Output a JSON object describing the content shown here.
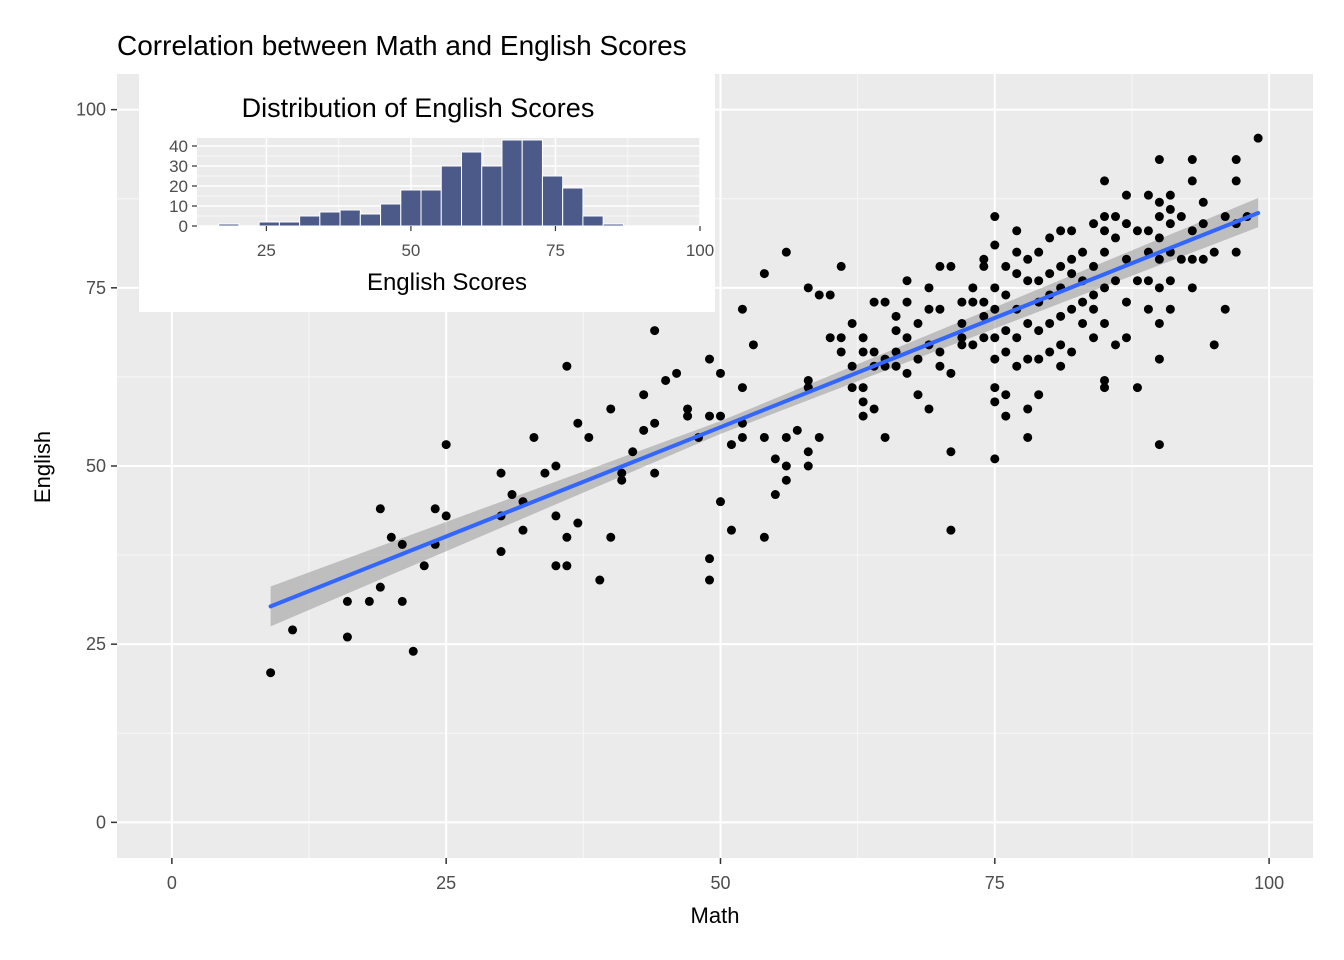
{
  "chart_data": [
    {
      "type": "scatter",
      "title": "Correlation between Math and English Scores",
      "xlabel": "Math",
      "ylabel": "English",
      "xlim": [
        -5,
        104
      ],
      "ylim": [
        -5,
        105
      ],
      "x_ticks": [
        0,
        25,
        50,
        75,
        100
      ],
      "y_ticks": [
        0,
        25,
        50,
        75,
        100
      ],
      "grid": true,
      "colors": {
        "points": "#000000",
        "fit_line": "#3366ff",
        "confidence_band": "#999999",
        "panel": "#ebebeb"
      },
      "fit_line": {
        "x": [
          9,
          99
        ],
        "y": [
          30.3,
          85.5
        ]
      },
      "confidence_band": {
        "x": [
          9,
          50,
          99
        ],
        "lower": [
          27.5,
          54.5,
          83.5
        ],
        "upper": [
          33.1,
          56.3,
          87.6
        ]
      },
      "points": [
        [
          9,
          21
        ],
        [
          11,
          27
        ],
        [
          16,
          31
        ],
        [
          16,
          26
        ],
        [
          18,
          31
        ],
        [
          19,
          33
        ],
        [
          19,
          44
        ],
        [
          20,
          40
        ],
        [
          21,
          39
        ],
        [
          21,
          31
        ],
        [
          22,
          24
        ],
        [
          23,
          36
        ],
        [
          24,
          44
        ],
        [
          24,
          39
        ],
        [
          25,
          53
        ],
        [
          25,
          43
        ],
        [
          30,
          49
        ],
        [
          30,
          43
        ],
        [
          30,
          38
        ],
        [
          31,
          46
        ],
        [
          32,
          45
        ],
        [
          32,
          41
        ],
        [
          33,
          54
        ],
        [
          34,
          49
        ],
        [
          35,
          50
        ],
        [
          35,
          43
        ],
        [
          35,
          36
        ],
        [
          36,
          40
        ],
        [
          36,
          36
        ],
        [
          36,
          64
        ],
        [
          37,
          56
        ],
        [
          37,
          42
        ],
        [
          38,
          54
        ],
        [
          39,
          34
        ],
        [
          40,
          58
        ],
        [
          40,
          40
        ],
        [
          41,
          49
        ],
        [
          41,
          48
        ],
        [
          42,
          52
        ],
        [
          43,
          60
        ],
        [
          43,
          55
        ],
        [
          44,
          69
        ],
        [
          44,
          56
        ],
        [
          44,
          49
        ],
        [
          45,
          62
        ],
        [
          46,
          63
        ],
        [
          47,
          58
        ],
        [
          47,
          57
        ],
        [
          48,
          54
        ],
        [
          49,
          65
        ],
        [
          49,
          57
        ],
        [
          49,
          37
        ],
        [
          49,
          34
        ],
        [
          50,
          63
        ],
        [
          50,
          57
        ],
        [
          50,
          45
        ],
        [
          51,
          53
        ],
        [
          51,
          41
        ],
        [
          52,
          72
        ],
        [
          52,
          61
        ],
        [
          52,
          56
        ],
        [
          52,
          54
        ],
        [
          53,
          67
        ],
        [
          54,
          77
        ],
        [
          54,
          54
        ],
        [
          54,
          40
        ],
        [
          55,
          51
        ],
        [
          55,
          46
        ],
        [
          56,
          80
        ],
        [
          56,
          50
        ],
        [
          56,
          48
        ],
        [
          56,
          54
        ],
        [
          57,
          55
        ],
        [
          58,
          75
        ],
        [
          58,
          62
        ],
        [
          58,
          61
        ],
        [
          58,
          52
        ],
        [
          58,
          50
        ],
        [
          59,
          74
        ],
        [
          59,
          54
        ],
        [
          60,
          74
        ],
        [
          60,
          68
        ],
        [
          61,
          78
        ],
        [
          61,
          66
        ],
        [
          61,
          68
        ],
        [
          62,
          61
        ],
        [
          62,
          64
        ],
        [
          62,
          70
        ],
        [
          63,
          57
        ],
        [
          63,
          59
        ],
        [
          63,
          61
        ],
        [
          63,
          66
        ],
        [
          63,
          68
        ],
        [
          64,
          73
        ],
        [
          64,
          66
        ],
        [
          64,
          64
        ],
        [
          64,
          58
        ],
        [
          65,
          73
        ],
        [
          65,
          65
        ],
        [
          65,
          64
        ],
        [
          65,
          54
        ],
        [
          66,
          71
        ],
        [
          66,
          64
        ],
        [
          66,
          66
        ],
        [
          66,
          69
        ],
        [
          67,
          76
        ],
        [
          67,
          73
        ],
        [
          67,
          68
        ],
        [
          67,
          63
        ],
        [
          68,
          60
        ],
        [
          68,
          70
        ],
        [
          68,
          65
        ],
        [
          69,
          75
        ],
        [
          69,
          72
        ],
        [
          69,
          67
        ],
        [
          69,
          58
        ],
        [
          70,
          78
        ],
        [
          70,
          72
        ],
        [
          70,
          66
        ],
        [
          70,
          64
        ],
        [
          71,
          78
        ],
        [
          71,
          63
        ],
        [
          71,
          52
        ],
        [
          71,
          41
        ],
        [
          72,
          70
        ],
        [
          72,
          73
        ],
        [
          72,
          68
        ],
        [
          72,
          67
        ],
        [
          73,
          73
        ],
        [
          73,
          67
        ],
        [
          73,
          75
        ],
        [
          74,
          79
        ],
        [
          74,
          78
        ],
        [
          74,
          73
        ],
        [
          74,
          71
        ],
        [
          74,
          68
        ],
        [
          75,
          85
        ],
        [
          75,
          81
        ],
        [
          75,
          75
        ],
        [
          75,
          72
        ],
        [
          75,
          68
        ],
        [
          75,
          65
        ],
        [
          75,
          61
        ],
        [
          75,
          59
        ],
        [
          75,
          51
        ],
        [
          76,
          78
        ],
        [
          76,
          74
        ],
        [
          76,
          69
        ],
        [
          76,
          66
        ],
        [
          76,
          60
        ],
        [
          76,
          57
        ],
        [
          77,
          83
        ],
        [
          77,
          80
        ],
        [
          77,
          77
        ],
        [
          77,
          72
        ],
        [
          77,
          68
        ],
        [
          77,
          64
        ],
        [
          78,
          79
        ],
        [
          78,
          76
        ],
        [
          78,
          70
        ],
        [
          78,
          65
        ],
        [
          78,
          58
        ],
        [
          78,
          54
        ],
        [
          79,
          80
        ],
        [
          79,
          76
        ],
        [
          79,
          73
        ],
        [
          79,
          69
        ],
        [
          79,
          65
        ],
        [
          79,
          60
        ],
        [
          80,
          82
        ],
        [
          80,
          77
        ],
        [
          80,
          74
        ],
        [
          80,
          70
        ],
        [
          80,
          66
        ],
        [
          81,
          83
        ],
        [
          81,
          78
        ],
        [
          81,
          75
        ],
        [
          81,
          71
        ],
        [
          81,
          67
        ],
        [
          81,
          64
        ],
        [
          82,
          83
        ],
        [
          82,
          79
        ],
        [
          82,
          77
        ],
        [
          82,
          72
        ],
        [
          82,
          66
        ],
        [
          83,
          80
        ],
        [
          83,
          76
        ],
        [
          83,
          73
        ],
        [
          83,
          70
        ],
        [
          84,
          84
        ],
        [
          84,
          78
        ],
        [
          84,
          74
        ],
        [
          84,
          72
        ],
        [
          84,
          68
        ],
        [
          85,
          90
        ],
        [
          85,
          85
        ],
        [
          85,
          83
        ],
        [
          85,
          80
        ],
        [
          85,
          75
        ],
        [
          85,
          70
        ],
        [
          85,
          62
        ],
        [
          85,
          61
        ],
        [
          86,
          85
        ],
        [
          86,
          82
        ],
        [
          86,
          76
        ],
        [
          86,
          67
        ],
        [
          87,
          88
        ],
        [
          87,
          84
        ],
        [
          87,
          79
        ],
        [
          87,
          73
        ],
        [
          87,
          68
        ],
        [
          88,
          83
        ],
        [
          88,
          76
        ],
        [
          88,
          61
        ],
        [
          89,
          88
        ],
        [
          89,
          83
        ],
        [
          89,
          80
        ],
        [
          89,
          76
        ],
        [
          89,
          72
        ],
        [
          90,
          93
        ],
        [
          90,
          87
        ],
        [
          90,
          85
        ],
        [
          90,
          82
        ],
        [
          90,
          79
        ],
        [
          90,
          75
        ],
        [
          90,
          70
        ],
        [
          90,
          65
        ],
        [
          90,
          53
        ],
        [
          91,
          88
        ],
        [
          91,
          86
        ],
        [
          91,
          84
        ],
        [
          91,
          80
        ],
        [
          91,
          76
        ],
        [
          91,
          72
        ],
        [
          92,
          85
        ],
        [
          92,
          79
        ],
        [
          93,
          93
        ],
        [
          93,
          90
        ],
        [
          93,
          83
        ],
        [
          93,
          79
        ],
        [
          93,
          75
        ],
        [
          94,
          87
        ],
        [
          94,
          84
        ],
        [
          94,
          79
        ],
        [
          95,
          80
        ],
        [
          95,
          67
        ],
        [
          96,
          85
        ],
        [
          96,
          72
        ],
        [
          97,
          93
        ],
        [
          97,
          90
        ],
        [
          97,
          84
        ],
        [
          97,
          80
        ],
        [
          98,
          85
        ],
        [
          99,
          96
        ]
      ]
    },
    {
      "type": "bar",
      "title": "Distribution of English Scores",
      "xlabel": "English Scores",
      "ylabel": "",
      "xlim": [
        13,
        100
      ],
      "ylim": [
        0,
        44
      ],
      "x_ticks": [
        25,
        50,
        75,
        100
      ],
      "y_ticks": [
        0,
        10,
        20,
        30,
        40
      ],
      "grid": true,
      "colors": {
        "bars": "#4c5a8a",
        "panel": "#ebebeb"
      },
      "bin_width": 3.5,
      "bin_centers": [
        18.5,
        22,
        25.5,
        29,
        32.5,
        36,
        39.5,
        43,
        46.5,
        50,
        53.5,
        57,
        60.5,
        64,
        67.5,
        71,
        74.5,
        78,
        81.5,
        85,
        88.5,
        92,
        95.5
      ],
      "values": [
        1,
        0,
        2,
        2,
        5,
        7,
        8,
        6,
        11,
        18,
        18,
        30,
        37,
        30,
        43,
        43,
        25,
        19,
        5,
        1,
        0,
        0,
        0
      ]
    }
  ]
}
